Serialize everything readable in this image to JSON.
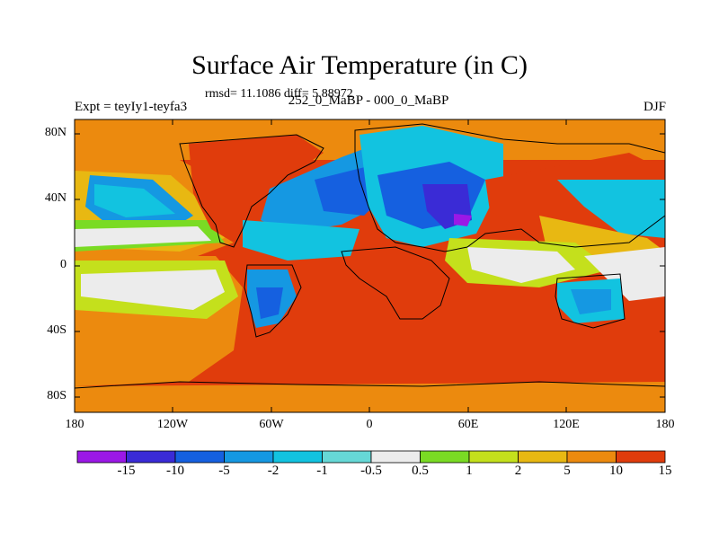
{
  "title": "Surface Air Temperature (in C)",
  "stats_text": "rmsd= 11.1086 diff= 5.88972",
  "experiment_label": "Expt = teyIy1-teyfa3",
  "period_label": "252_0_MaBP - 000_0_MaBP",
  "season_label": "DJF",
  "lat_ticks": [
    "80N",
    "40N",
    "0",
    "40S",
    "80S"
  ],
  "lon_ticks": [
    "180",
    "120W",
    "60W",
    "0",
    "60E",
    "120E",
    "180"
  ],
  "colorbar": {
    "labels": [
      "-15",
      "-10",
      "-5",
      "-2",
      "-1",
      "-0.5",
      "0.5",
      "1",
      "2",
      "5",
      "10",
      "15"
    ],
    "colors": [
      "#9b18e6",
      "#3a2bd6",
      "#1560e0",
      "#1598e2",
      "#12c3e0",
      "#66d8d6",
      "#ececec",
      "#7adb24",
      "#c4e01c",
      "#e8b812",
      "#ec8a0e",
      "#e03c0c"
    ]
  },
  "colors": {
    "warm_dominant": "#e03c0c",
    "orange": "#ec8a0e",
    "land_outline": "#000000"
  }
}
